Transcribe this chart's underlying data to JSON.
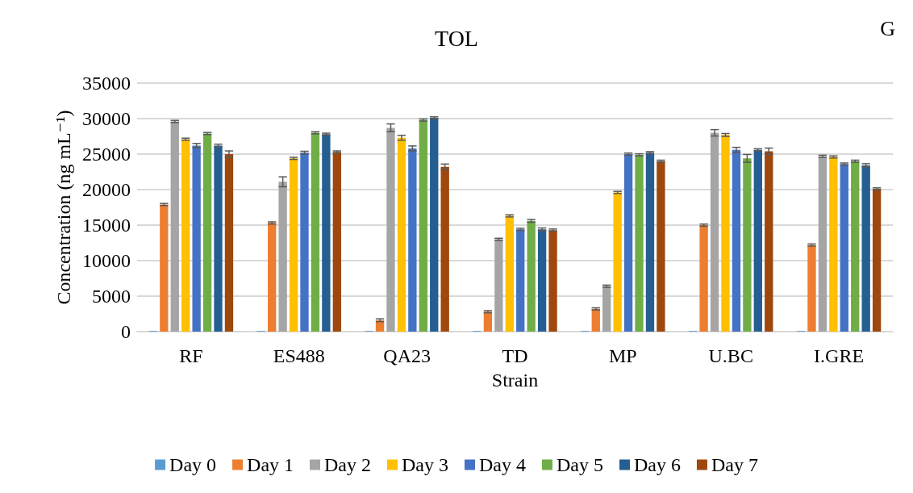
{
  "chart_data": {
    "type": "bar",
    "title": "TOL",
    "xlabel": "Strain",
    "ylabel": "Concentration (ng mL⁻¹)",
    "annotations": [
      "G"
    ],
    "categories": [
      "RF",
      "ES488",
      "QA23",
      "TD",
      "MP",
      "U.BC",
      "I.GRE"
    ],
    "ylim": [
      0,
      35000
    ],
    "yticks": [
      0,
      5000,
      10000,
      15000,
      20000,
      25000,
      30000,
      35000
    ],
    "grid": "y",
    "legend": "bottom",
    "series": [
      {
        "name": "Day 0",
        "color": "#5b9bd5",
        "values": [
          100,
          100,
          100,
          100,
          100,
          100,
          100
        ]
      },
      {
        "name": "Day 1",
        "color": "#ed7d31",
        "values": [
          17900,
          15300,
          1600,
          2800,
          3200,
          15000,
          12200
        ],
        "errors": [
          150,
          150,
          200,
          150,
          150,
          150,
          150
        ]
      },
      {
        "name": "Day 2",
        "color": "#a5a5a5",
        "values": [
          29600,
          21100,
          28700,
          13000,
          6400,
          28000,
          24700
        ],
        "errors": [
          150,
          700,
          550,
          150,
          150,
          450,
          150
        ]
      },
      {
        "name": "Day 3",
        "color": "#ffc000",
        "values": [
          27100,
          24400,
          27300,
          16300,
          19600,
          27700,
          24600
        ],
        "errors": [
          150,
          150,
          350,
          150,
          150,
          200,
          150
        ]
      },
      {
        "name": "Day 4",
        "color": "#4472c4",
        "values": [
          26200,
          25200,
          25800,
          14400,
          25000,
          25600,
          23600
        ],
        "errors": [
          300,
          200,
          350,
          150,
          150,
          350,
          150
        ]
      },
      {
        "name": "Day 5",
        "color": "#70ad47",
        "values": [
          27900,
          28000,
          29800,
          15600,
          24900,
          24400,
          24000
        ],
        "errors": [
          150,
          150,
          150,
          200,
          150,
          550,
          150
        ]
      },
      {
        "name": "Day 6",
        "color": "#255e91",
        "values": [
          26200,
          27800,
          30100,
          14400,
          25200,
          25600,
          23400
        ],
        "errors": [
          200,
          150,
          150,
          200,
          150,
          150,
          250
        ]
      },
      {
        "name": "Day 7",
        "color": "#9e480e",
        "values": [
          25000,
          25300,
          23200,
          14300,
          24000,
          25400,
          20100
        ],
        "errors": [
          450,
          150,
          400,
          150,
          150,
          450,
          150
        ]
      }
    ]
  }
}
